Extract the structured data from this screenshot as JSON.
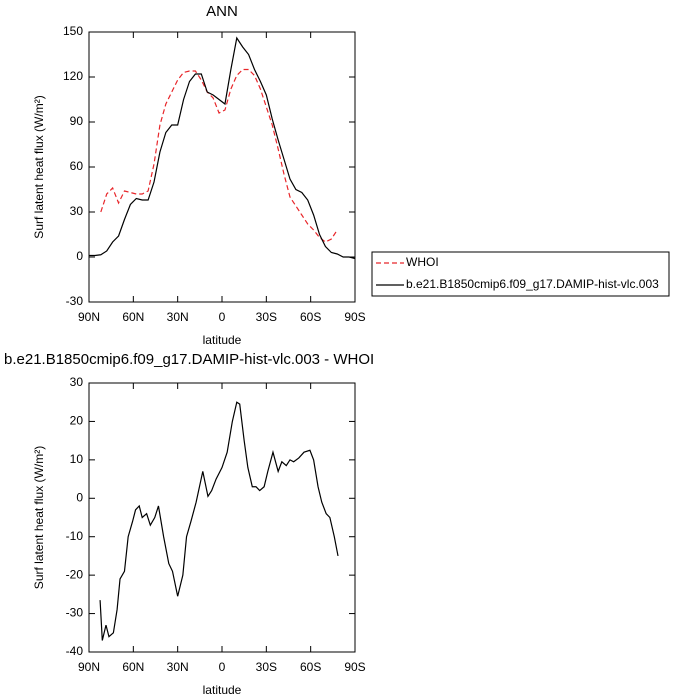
{
  "chart_data": [
    {
      "type": "line",
      "title": "ANN",
      "xlabel": "latitude",
      "ylabel": "Surf latent heat flux (W/m²)",
      "x": [
        90,
        86,
        82,
        78,
        74,
        70,
        66,
        62,
        58,
        54,
        50,
        46,
        42,
        38,
        34,
        30,
        26,
        22,
        18,
        14,
        10,
        6,
        2,
        -2,
        -6,
        -10,
        -14,
        -18,
        -22,
        -26,
        -30,
        -34,
        -38,
        -42,
        -46,
        -50,
        -54,
        -58,
        -62,
        -66,
        -70,
        -74,
        -78,
        -82,
        -86,
        -90
      ],
      "series": [
        {
          "name": "WHOI",
          "color": "#e8262a",
          "dash": true,
          "values": [
            null,
            null,
            30,
            42,
            46,
            36,
            44,
            43,
            42,
            42,
            44,
            62,
            88,
            102,
            110,
            118,
            123,
            124,
            124,
            118,
            110,
            106,
            96,
            98,
            112,
            121,
            125,
            125,
            121,
            112,
            100,
            88,
            72,
            55,
            40,
            34,
            28,
            22,
            18,
            13,
            10,
            12,
            18,
            null,
            null,
            null
          ]
        },
        {
          "name": "b.e21.B1850cmip6.f09_g17.DAMIP-hist-vlc.003",
          "color": "#000000",
          "dash": false,
          "values": [
            1,
            1,
            1.5,
            4,
            10,
            14,
            25,
            35,
            39,
            38,
            38,
            50,
            70,
            83,
            88,
            88,
            105,
            117,
            122,
            122,
            110,
            108,
            105,
            102,
            125,
            146,
            140,
            135,
            125,
            117,
            108,
            92,
            78,
            65,
            52,
            45,
            43,
            38,
            28,
            15,
            7,
            3,
            2,
            0,
            0,
            -1
          ]
        }
      ],
      "xlim": [
        90,
        -90
      ],
      "xticks": [
        {
          "value": 90,
          "label": "90N"
        },
        {
          "value": 60,
          "label": "60N"
        },
        {
          "value": 30,
          "label": "30N"
        },
        {
          "value": 0,
          "label": "0"
        },
        {
          "value": -30,
          "label": "30S"
        },
        {
          "value": -60,
          "label": "60S"
        },
        {
          "value": -90,
          "label": "90S"
        }
      ],
      "ylim": [
        -30,
        150
      ],
      "yticks": [
        -30,
        0,
        30,
        60,
        90,
        120,
        150
      ],
      "legend": "right"
    },
    {
      "type": "line",
      "title": "b.e21.B1850cmip6.f09_g17.DAMIP-hist-vlc.003 - WHOI",
      "xlabel": "latitude",
      "ylabel": "Surf latent heat flux (W/m²)",
      "x": [
        82.5,
        81,
        78.5,
        76.5,
        73.5,
        71,
        69,
        66,
        63.5,
        60.5,
        58.5,
        56,
        54,
        51,
        48.5,
        45.5,
        43,
        39.5,
        36,
        33.5,
        30,
        26.5,
        24,
        21,
        17.5,
        13,
        9.5,
        7,
        4,
        0,
        -3.5,
        -7,
        -10,
        -12,
        -15,
        -17.5,
        -20.5,
        -23,
        -25.5,
        -28.5,
        -31,
        -34.5,
        -38,
        -40.5,
        -43.5,
        -46,
        -48.5,
        -52,
        -55.5,
        -59.5,
        -62,
        -65,
        -67.5,
        -70.5,
        -73,
        -76,
        -78.5
      ],
      "values": [
        -26.5,
        -37,
        -33,
        -36,
        -35,
        -29,
        -21,
        -19,
        -10,
        -6,
        -3,
        -2,
        -5,
        -4,
        -7,
        -5,
        -2,
        -10,
        -17,
        -19,
        -25.5,
        -20,
        -10,
        -6,
        -1,
        7,
        0.5,
        2,
        5,
        8,
        12,
        20,
        25,
        24.5,
        15,
        8,
        3,
        3,
        2,
        3,
        7,
        12,
        7,
        9.5,
        8.5,
        10,
        9.5,
        10.5,
        12,
        12.5,
        10,
        3,
        -1,
        -4,
        -5,
        -10,
        -15
      ],
      "color": "#000000",
      "xlim": [
        90,
        -90
      ],
      "xticks": [
        {
          "value": 90,
          "label": "90N"
        },
        {
          "value": 60,
          "label": "60N"
        },
        {
          "value": 30,
          "label": "30N"
        },
        {
          "value": 0,
          "label": "0"
        },
        {
          "value": -30,
          "label": "30S"
        },
        {
          "value": -60,
          "label": "60S"
        },
        {
          "value": -90,
          "label": "90S"
        }
      ],
      "ylim": [
        -40,
        30
      ],
      "yticks": [
        -40,
        -30,
        -20,
        -10,
        0,
        10,
        20,
        30
      ]
    }
  ]
}
